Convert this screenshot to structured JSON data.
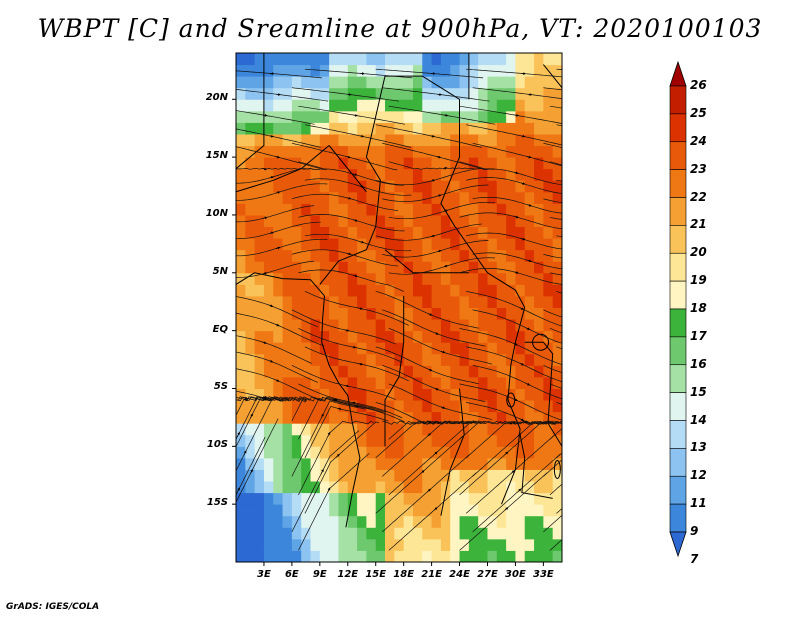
{
  "title": "WBPT [C] and Sreamline at 900hPa, VT: 2020100103",
  "credit": "GrADS: IGES/COLA",
  "map": {
    "lon_range": [
      0,
      35
    ],
    "lat_range": [
      -20,
      24
    ],
    "lat_labels": [
      {
        "label": "20N",
        "lat": 20
      },
      {
        "label": "15N",
        "lat": 15
      },
      {
        "label": "10N",
        "lat": 10
      },
      {
        "label": "5N",
        "lat": 5
      },
      {
        "label": "EQ",
        "lat": 0
      },
      {
        "label": "5S",
        "lat": -5
      },
      {
        "label": "10S",
        "lat": -10
      },
      {
        "label": "15S",
        "lat": -15
      }
    ],
    "lon_labels": [
      {
        "label": "3E",
        "lon": 3
      },
      {
        "label": "6E",
        "lon": 6
      },
      {
        "label": "9E",
        "lon": 9
      },
      {
        "label": "12E",
        "lon": 12
      },
      {
        "label": "15E",
        "lon": 15
      },
      {
        "label": "18E",
        "lon": 18
      },
      {
        "label": "21E",
        "lon": 21
      },
      {
        "label": "24E",
        "lon": 24
      },
      {
        "label": "27E",
        "lon": 27
      },
      {
        "label": "30E",
        "lon": 30
      },
      {
        "label": "33E",
        "lon": 33
      }
    ]
  },
  "colorbar": {
    "labels": [
      "26",
      "25",
      "24",
      "23",
      "22",
      "21",
      "20",
      "19",
      "18",
      "17",
      "16",
      "15",
      "14",
      "13",
      "12",
      "11",
      "9",
      "7"
    ],
    "colors": [
      "#a00000",
      "#c41e00",
      "#dc3200",
      "#e85a0a",
      "#f07814",
      "#f5a032",
      "#fac35a",
      "#fde696",
      "#fff5c3",
      "#3cb43c",
      "#6ec86e",
      "#a5e1a5",
      "#e1f5f0",
      "#b4dcf5",
      "#8cc3f0",
      "#5fa5e6",
      "#3c87dc",
      "#2d69d2"
    ]
  },
  "colors": {
    "land_red": "#d8441e",
    "desert_green": "#46b446",
    "ocean_blue": "#6ea8e0"
  }
}
